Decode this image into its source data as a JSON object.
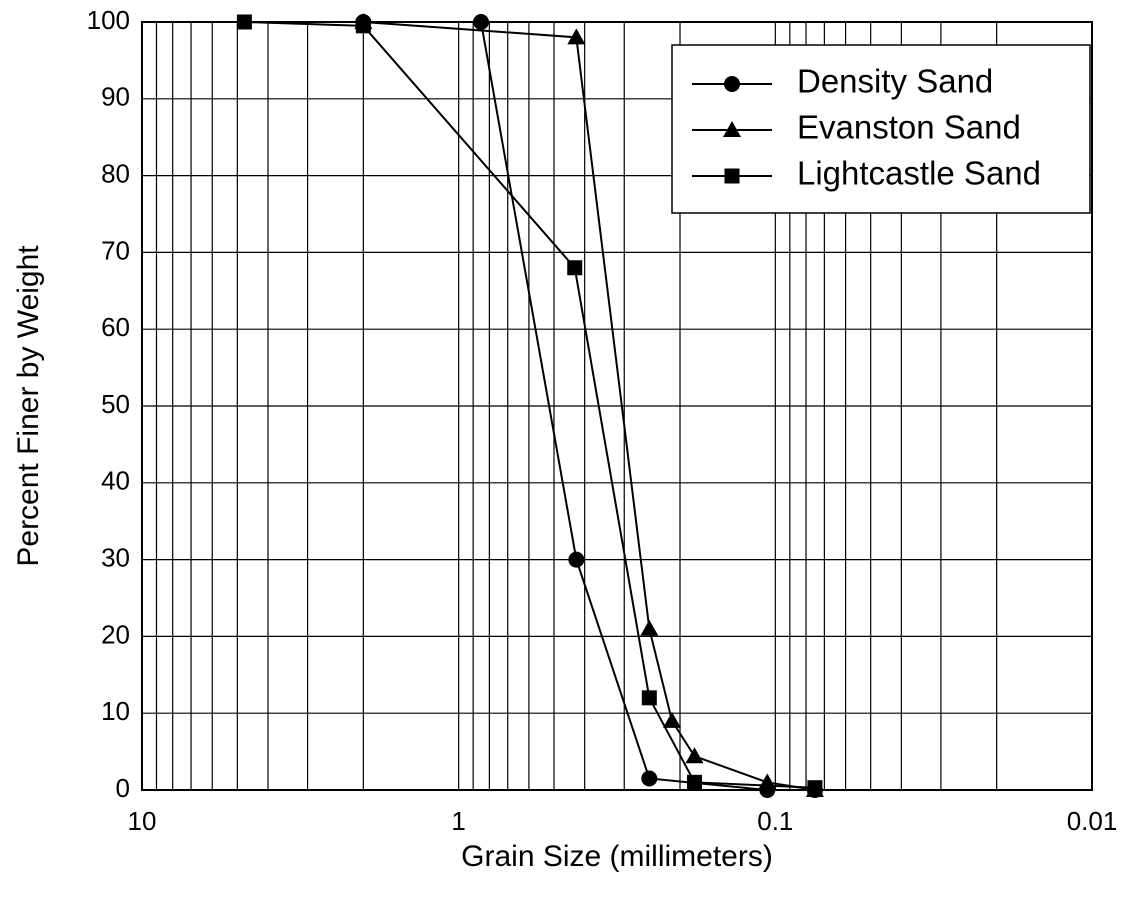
{
  "chart_data": {
    "type": "line",
    "x_label": "Grain Size (millimeters)",
    "y_label": "Percent Finer by Weight",
    "x_scale": "log",
    "xlim": [
      10,
      0.01
    ],
    "xticks": [
      10,
      1,
      0.1,
      0.01
    ],
    "x_minor_grid": [
      9,
      8,
      7,
      6,
      5,
      4,
      3,
      2,
      0.9,
      0.8,
      0.7,
      0.6,
      0.5,
      0.4,
      0.3,
      0.2,
      0.09,
      0.08,
      0.07,
      0.06,
      0.05,
      0.04,
      0.03,
      0.02
    ],
    "ylim": [
      0,
      100
    ],
    "yticks": [
      0,
      10,
      20,
      30,
      40,
      50,
      60,
      70,
      80,
      90,
      100
    ],
    "grid": true,
    "legend": "upper right",
    "series": [
      {
        "name": "Density Sand",
        "color": "#000000",
        "marker": "circle",
        "x": [
          2.0,
          0.85,
          0.425,
          0.25,
          0.106,
          0.075
        ],
        "values": [
          100,
          100,
          30,
          1.5,
          0,
          0
        ]
      },
      {
        "name": "Evanston Sand",
        "color": "#000000",
        "marker": "triangle",
        "x": [
          2.0,
          0.425,
          0.25,
          0.212,
          0.18,
          0.106,
          0.075
        ],
        "values": [
          100,
          98,
          21,
          9,
          4.4,
          1,
          0
        ]
      },
      {
        "name": "Lightcastle Sand",
        "color": "#000000",
        "marker": "square",
        "x": [
          4.75,
          2.0,
          0.43,
          0.25,
          0.18,
          0.075
        ],
        "values": [
          100,
          99.5,
          68,
          12,
          1,
          0.3
        ]
      }
    ]
  }
}
